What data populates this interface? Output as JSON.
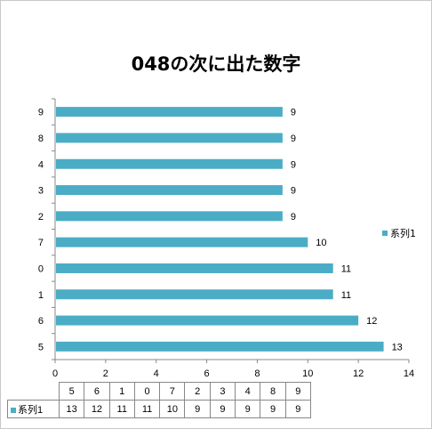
{
  "chart_data": {
    "type": "bar",
    "orientation": "horizontal",
    "title": "048の次に出た数字",
    "categories": [
      "5",
      "6",
      "1",
      "0",
      "7",
      "2",
      "3",
      "4",
      "8",
      "9"
    ],
    "series": [
      {
        "name": "系列1",
        "values": [
          13,
          12,
          11,
          11,
          10,
          9,
          9,
          9,
          9,
          9
        ],
        "color": "#4bacc6"
      }
    ],
    "xlim": [
      0,
      14
    ],
    "xticks": [
      "0",
      "2",
      "4",
      "6",
      "8",
      "10",
      "12",
      "14"
    ],
    "data_labels": true,
    "legend_position": "right",
    "data_table": true
  }
}
